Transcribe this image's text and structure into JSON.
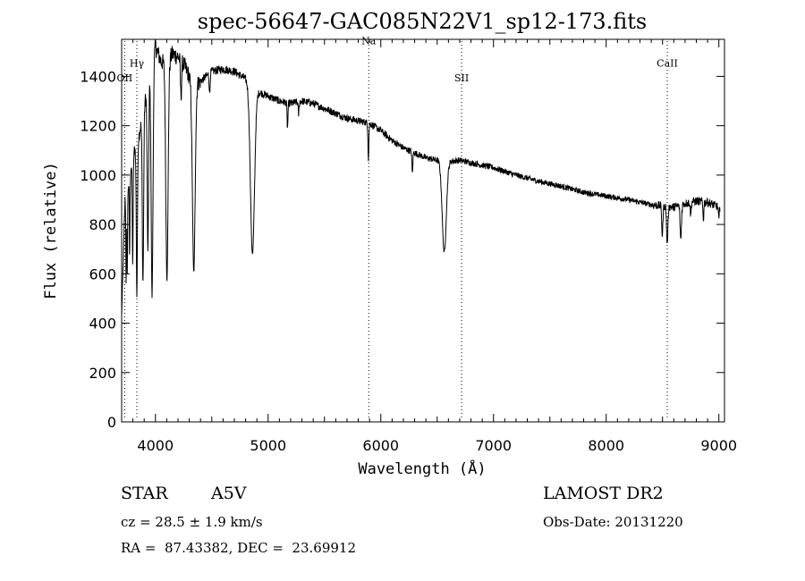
{
  "chart_data": {
    "type": "line",
    "title": "spec-56647-GAC085N22V1_sp12-173.fits",
    "xlabel": "Wavelength (Å)",
    "ylabel": "Flux (relative)",
    "xlim": [
      3700,
      9050
    ],
    "ylim": [
      0,
      1550
    ],
    "xticks": [
      "4000",
      "5000",
      "6000",
      "7000",
      "8000",
      "9000"
    ],
    "yticks": [
      "0",
      "200",
      "400",
      "600",
      "800",
      "1000",
      "1200",
      "1400"
    ],
    "lines": [
      {
        "label": "OII",
        "x": 3727,
        "label_y": 1380
      },
      {
        "label": "Hγ",
        "x": 3835,
        "label_y": 1440
      },
      {
        "label": "Na",
        "x": 5893,
        "label_y": 1530
      },
      {
        "label": "SII",
        "x": 6717,
        "label_y": 1380
      },
      {
        "label": "CaII",
        "x": 8542,
        "label_y": 1440
      }
    ],
    "continuum": [
      [
        3700,
        430
      ],
      [
        3730,
        900
      ],
      [
        3760,
        960
      ],
      [
        3800,
        1080
      ],
      [
        3850,
        1150
      ],
      [
        3900,
        1280
      ],
      [
        3950,
        1400
      ],
      [
        4000,
        1520
      ],
      [
        4050,
        1460
      ],
      [
        4100,
        1450
      ],
      [
        4150,
        1490
      ],
      [
        4200,
        1480
      ],
      [
        4250,
        1450
      ],
      [
        4300,
        1400
      ],
      [
        4350,
        1370
      ],
      [
        4400,
        1380
      ],
      [
        4450,
        1400
      ],
      [
        4500,
        1420
      ],
      [
        4600,
        1430
      ],
      [
        4700,
        1420
      ],
      [
        4800,
        1390
      ],
      [
        4900,
        1340
      ],
      [
        5000,
        1320
      ],
      [
        5100,
        1300
      ],
      [
        5200,
        1290
      ],
      [
        5300,
        1300
      ],
      [
        5400,
        1290
      ],
      [
        5500,
        1270
      ],
      [
        5600,
        1250
      ],
      [
        5700,
        1230
      ],
      [
        5800,
        1220
      ],
      [
        5900,
        1210
      ],
      [
        6000,
        1180
      ],
      [
        6100,
        1140
      ],
      [
        6200,
        1110
      ],
      [
        6300,
        1090
      ],
      [
        6400,
        1070
      ],
      [
        6500,
        1060
      ],
      [
        6600,
        1055
      ],
      [
        6700,
        1060
      ],
      [
        6800,
        1050
      ],
      [
        7000,
        1030
      ],
      [
        7200,
        1000
      ],
      [
        7400,
        975
      ],
      [
        7600,
        955
      ],
      [
        7800,
        930
      ],
      [
        8000,
        915
      ],
      [
        8200,
        900
      ],
      [
        8400,
        880
      ],
      [
        8600,
        870
      ],
      [
        8700,
        885
      ],
      [
        8800,
        895
      ],
      [
        8900,
        890
      ],
      [
        9000,
        870
      ]
    ],
    "absorption": [
      {
        "x": 3740,
        "depth": 0.38,
        "w": 3
      },
      {
        "x": 3750,
        "depth": 0.35,
        "w": 3
      },
      {
        "x": 3771,
        "depth": 0.33,
        "w": 3
      },
      {
        "x": 3798,
        "depth": 0.4,
        "w": 4
      },
      {
        "x": 3835,
        "depth": 0.55,
        "w": 5
      },
      {
        "x": 3889,
        "depth": 0.55,
        "w": 6
      },
      {
        "x": 3933,
        "depth": 0.5,
        "w": 6
      },
      {
        "x": 3970,
        "depth": 0.65,
        "w": 8
      },
      {
        "x": 4102,
        "depth": 0.6,
        "w": 10
      },
      {
        "x": 4227,
        "depth": 0.1,
        "w": 5
      },
      {
        "x": 4340,
        "depth": 0.56,
        "w": 12
      },
      {
        "x": 4481,
        "depth": 0.06,
        "w": 4
      },
      {
        "x": 4861,
        "depth": 0.5,
        "w": 18
      },
      {
        "x": 5172,
        "depth": 0.08,
        "w": 4
      },
      {
        "x": 5270,
        "depth": 0.04,
        "w": 4
      },
      {
        "x": 5890,
        "depth": 0.12,
        "w": 4
      },
      {
        "x": 6280,
        "depth": 0.08,
        "w": 4
      },
      {
        "x": 6563,
        "depth": 0.35,
        "w": 18
      },
      {
        "x": 8498,
        "depth": 0.14,
        "w": 5
      },
      {
        "x": 8542,
        "depth": 0.17,
        "w": 6
      },
      {
        "x": 8662,
        "depth": 0.16,
        "w": 6
      },
      {
        "x": 8750,
        "depth": 0.06,
        "w": 4
      },
      {
        "x": 8863,
        "depth": 0.08,
        "w": 4
      },
      {
        "x": 9000,
        "depth": 0.06,
        "w": 4
      }
    ]
  },
  "info": {
    "object_class": "STAR",
    "subclass": "A5V",
    "survey": "LAMOST DR2",
    "cz": "cz = 28.5 ± 1.9 km/s",
    "obs_date": "Obs-Date: 20131220",
    "coords": "RA =  87.43382, DEC =  23.69912"
  }
}
